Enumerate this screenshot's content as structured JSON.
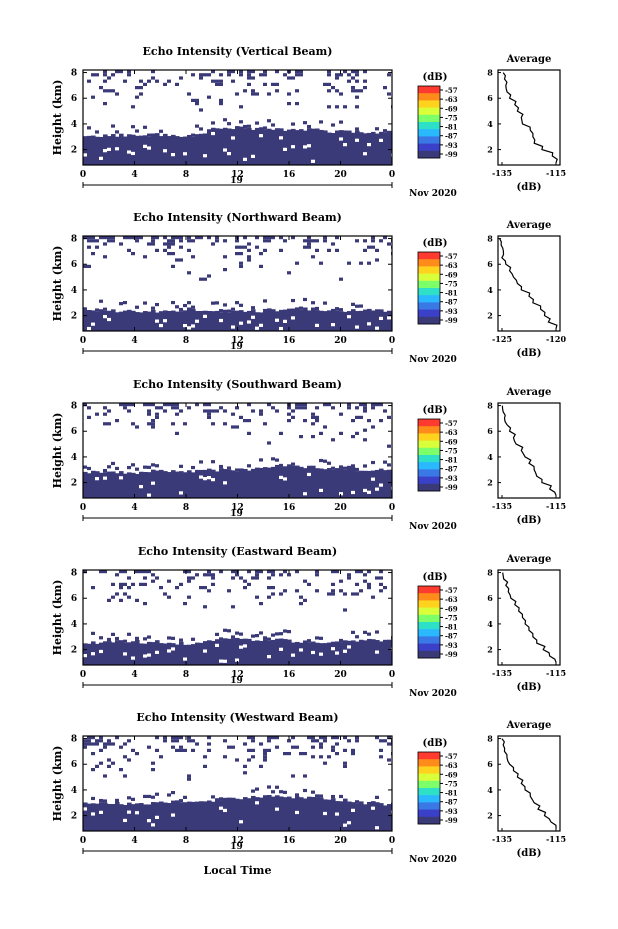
{
  "figure": {
    "date_label": "Nov 2020",
    "xaxis_title": "Local Time",
    "day_label": "19",
    "colorbar_units": "(dB)",
    "colorbar_ticks": [
      "-57",
      "-63",
      "-69",
      "-75",
      "-81",
      "-87",
      "-93",
      "-99"
    ],
    "colorbar_colors": [
      "#ff3a2e",
      "#ff8c1a",
      "#ffd21e",
      "#d8ff3a",
      "#7dff6a",
      "#2ee0c8",
      "#2ab8ff",
      "#3a78e6",
      "#3a40c8",
      "#3b3a78"
    ],
    "fill_color": "#3b3a78"
  },
  "chart_data": [
    {
      "type": "heatmap",
      "title": "Echo Intensity (Vertical Beam)",
      "ylabel": "Height (km)",
      "xlabel": "",
      "x_ticks": [
        "0",
        "4",
        "8",
        "12",
        "16",
        "20",
        "0"
      ],
      "xlim": [
        0,
        24
      ],
      "y_ticks": [
        "2",
        "4",
        "6",
        "8"
      ],
      "ylim": [
        0.8,
        8.2
      ],
      "low_layer_top_km": [
        3.0,
        3.1,
        3.1,
        3.2,
        3.0,
        3.6,
        3.7,
        3.6,
        3.6,
        3.5,
        3.4,
        3.4,
        3.3
      ],
      "profile": {
        "title": "Average",
        "xlabel": "(dB)",
        "x_ticks": [
          "-135",
          "-115"
        ],
        "xlim": [
          -138,
          -114
        ],
        "y_ticks": [
          "2",
          "4",
          "6",
          "8"
        ],
        "ylim": [
          0.8,
          8.2
        ],
        "height_km": [
          1.0,
          1.5,
          2.0,
          2.5,
          3.0,
          3.5,
          4.0,
          4.5,
          5.0,
          5.5,
          6.0,
          6.5,
          7.0,
          7.5,
          8.0
        ],
        "db": [
          -115.5,
          -117.0,
          -121.0,
          -124.0,
          -124.5,
          -125.5,
          -128.5,
          -129.0,
          -130.5,
          -131.5,
          -133.5,
          -134.5,
          -135.0,
          -135.5,
          -136.0
        ]
      }
    },
    {
      "type": "heatmap",
      "title": "Echo Intensity (Northward Beam)",
      "ylabel": "Height (km)",
      "xlabel": "",
      "x_ticks": [
        "0",
        "4",
        "8",
        "12",
        "16",
        "20",
        "0"
      ],
      "xlim": [
        0,
        24
      ],
      "y_ticks": [
        "2",
        "4",
        "6",
        "8"
      ],
      "ylim": [
        0.8,
        8.2
      ],
      "low_layer_top_km": [
        2.3,
        2.4,
        2.3,
        2.4,
        2.5,
        2.4,
        2.3,
        2.4,
        2.5,
        2.5,
        2.4,
        2.4,
        2.3
      ],
      "profile": {
        "title": "Average",
        "xlabel": "(dB)",
        "x_ticks": [
          "-125",
          "-120"
        ],
        "xlim": [
          -127,
          -119
        ],
        "y_ticks": [
          "2",
          "4",
          "6",
          "8"
        ],
        "ylim": [
          0.8,
          8.2
        ],
        "height_km": [
          1.0,
          1.5,
          2.0,
          2.5,
          3.0,
          3.5,
          4.0,
          4.5,
          5.0,
          5.5,
          6.0,
          6.5,
          7.0,
          7.5,
          8.0
        ],
        "db": [
          -119.5,
          -120.5,
          -121.0,
          -121.5,
          -122.5,
          -123.0,
          -124.0,
          -124.5,
          -125.0,
          -125.5,
          -126.0,
          -126.5,
          -126.3,
          -126.6,
          -126.8
        ]
      }
    },
    {
      "type": "heatmap",
      "title": "Echo Intensity (Southward Beam)",
      "ylabel": "Height (km)",
      "xlabel": "",
      "x_ticks": [
        "0",
        "4",
        "8",
        "12",
        "16",
        "20",
        "0"
      ],
      "xlim": [
        0,
        24
      ],
      "y_ticks": [
        "2",
        "4",
        "6",
        "8"
      ],
      "ylim": [
        0.8,
        8.2
      ],
      "low_layer_top_km": [
        2.8,
        2.9,
        2.8,
        2.9,
        2.9,
        3.0,
        3.0,
        3.2,
        3.3,
        3.2,
        3.1,
        3.0,
        2.9
      ],
      "profile": {
        "title": "Average",
        "xlabel": "(dB)",
        "x_ticks": [
          "-135",
          "-115"
        ],
        "xlim": [
          -138,
          -114
        ],
        "y_ticks": [
          "2",
          "4",
          "6",
          "8"
        ],
        "ylim": [
          0.8,
          8.2
        ],
        "height_km": [
          1.0,
          1.5,
          2.0,
          2.5,
          3.0,
          3.5,
          4.0,
          4.5,
          5.0,
          5.5,
          6.0,
          6.5,
          7.0,
          7.5,
          8.0
        ],
        "db": [
          -115.5,
          -118.0,
          -121.0,
          -123.0,
          -124.0,
          -126.0,
          -127.5,
          -129.0,
          -131.0,
          -132.0,
          -133.5,
          -134.5,
          -135.5,
          -136.0,
          -136.3
        ]
      }
    },
    {
      "type": "heatmap",
      "title": "Echo Intensity (Eastward Beam)",
      "ylabel": "Height (km)",
      "xlabel": "",
      "x_ticks": [
        "0",
        "4",
        "8",
        "12",
        "16",
        "20",
        "0"
      ],
      "xlim": [
        0,
        24
      ],
      "y_ticks": [
        "2",
        "4",
        "6",
        "8"
      ],
      "ylim": [
        0.8,
        8.2
      ],
      "low_layer_top_km": [
        2.5,
        2.6,
        2.6,
        2.6,
        2.5,
        2.7,
        2.8,
        2.8,
        2.7,
        2.6,
        2.6,
        2.8,
        2.6
      ],
      "profile": {
        "title": "Average",
        "xlabel": "(dB)",
        "x_ticks": [
          "-135",
          "-115"
        ],
        "xlim": [
          -138,
          -114
        ],
        "y_ticks": [
          "2",
          "4",
          "6",
          "8"
        ],
        "ylim": [
          0.8,
          8.2
        ],
        "height_km": [
          1.0,
          1.5,
          2.0,
          2.5,
          3.0,
          3.5,
          4.0,
          4.5,
          5.0,
          5.5,
          6.0,
          6.5,
          7.0,
          7.5,
          8.0
        ],
        "db": [
          -115.5,
          -118.0,
          -120.5,
          -123.0,
          -124.5,
          -126.0,
          -127.5,
          -128.5,
          -130.0,
          -131.5,
          -133.0,
          -134.0,
          -135.0,
          -135.8,
          -136.2
        ]
      }
    },
    {
      "type": "heatmap",
      "title": "Echo Intensity (Westward Beam)",
      "ylabel": "Height (km)",
      "xlabel": "Local Time",
      "x_ticks": [
        "0",
        "4",
        "8",
        "12",
        "16",
        "20",
        "0"
      ],
      "xlim": [
        0,
        24
      ],
      "y_ticks": [
        "2",
        "4",
        "6",
        "8"
      ],
      "ylim": [
        0.8,
        8.2
      ],
      "low_layer_top_km": [
        2.9,
        2.9,
        3.0,
        3.0,
        3.1,
        3.2,
        3.4,
        3.5,
        3.4,
        3.3,
        3.2,
        3.0,
        2.9
      ],
      "profile": {
        "title": "Average",
        "xlabel": "(dB)",
        "x_ticks": [
          "-135",
          "-115"
        ],
        "xlim": [
          -138,
          -114
        ],
        "y_ticks": [
          "2",
          "4",
          "6",
          "8"
        ],
        "ylim": [
          0.8,
          8.2
        ],
        "height_km": [
          1.0,
          1.5,
          2.0,
          2.5,
          3.0,
          3.5,
          4.0,
          4.5,
          5.0,
          5.5,
          6.0,
          6.5,
          7.0,
          7.5,
          8.0
        ],
        "db": [
          -115.5,
          -117.5,
          -120.0,
          -122.5,
          -124.0,
          -125.5,
          -127.5,
          -129.0,
          -130.5,
          -132.0,
          -133.5,
          -134.5,
          -135.5,
          -136.0,
          -136.5
        ]
      }
    }
  ]
}
